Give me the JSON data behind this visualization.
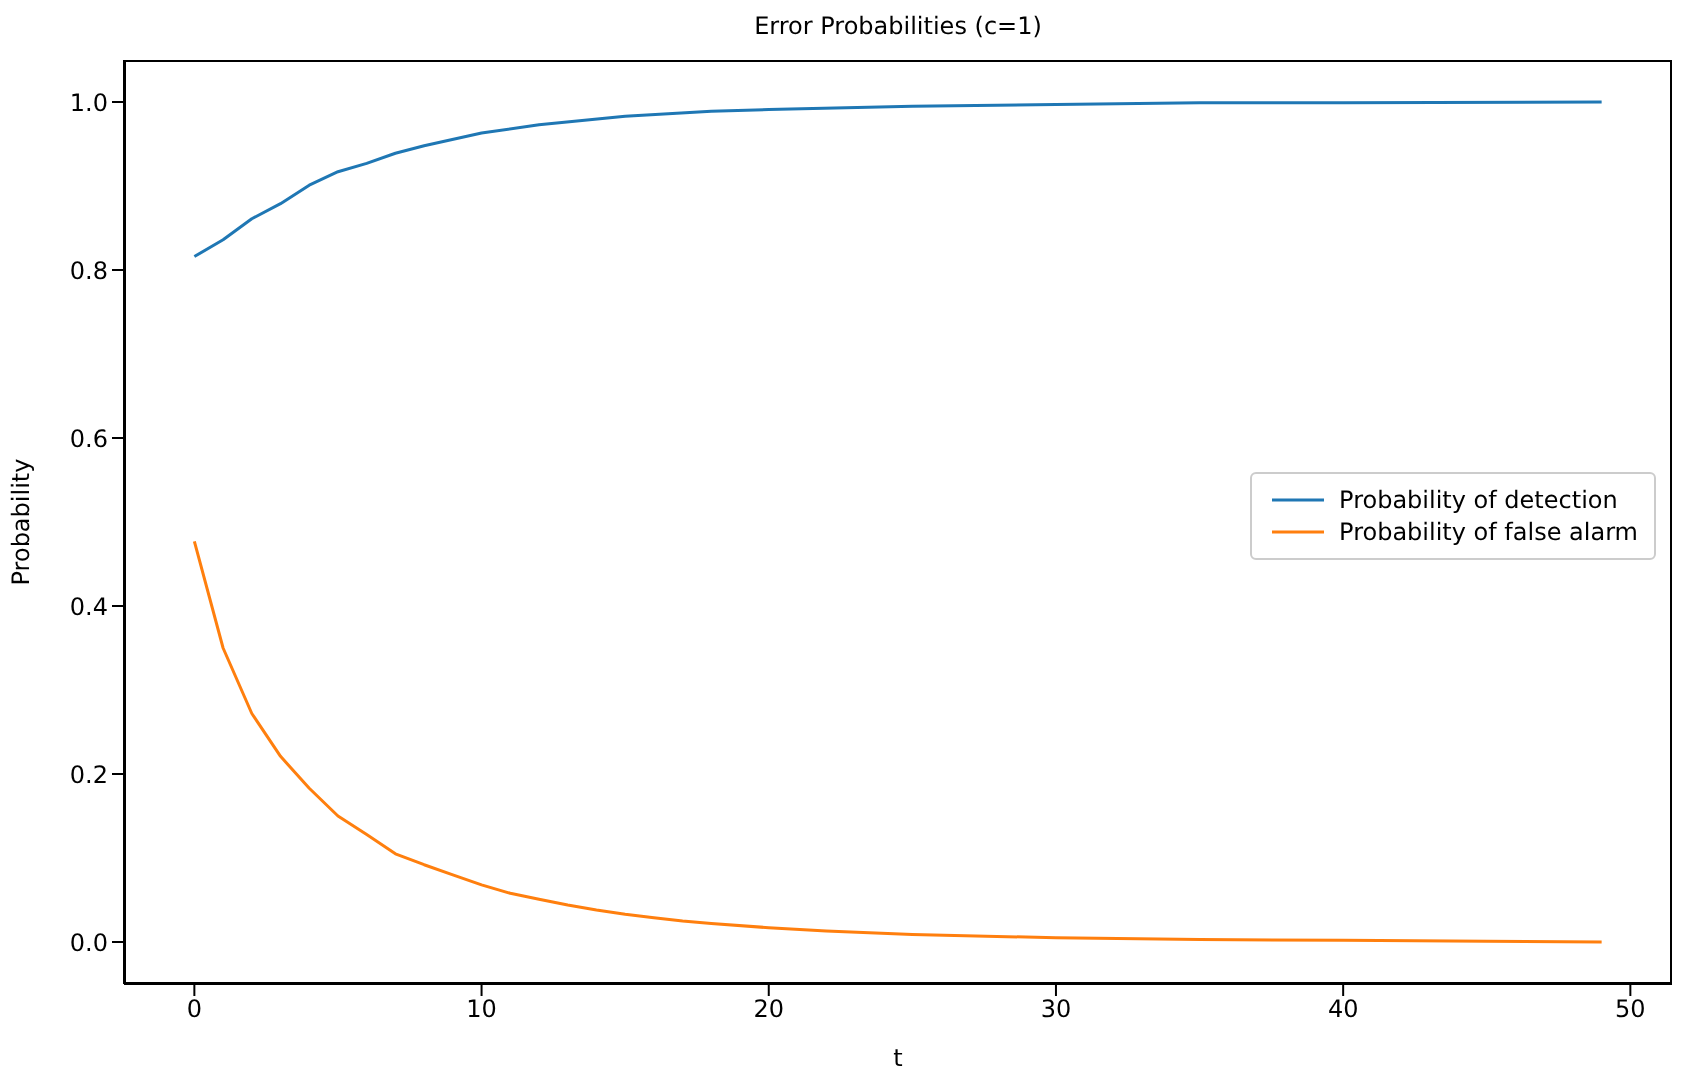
{
  "chart_data": {
    "type": "line",
    "title": "Error Probabilities (c=1)",
    "xlabel": "t",
    "ylabel": "Probability",
    "xlim": [
      -2.45,
      51.45
    ],
    "xticks": [
      0,
      10,
      20,
      30,
      40,
      50
    ],
    "ylim": [
      -0.05,
      1.05
    ],
    "yticks": [
      {
        "value": 0,
        "label": "0.0"
      },
      {
        "value": 0.2,
        "label": "0.2"
      },
      {
        "value": 0.4,
        "label": "0.4"
      },
      {
        "value": 0.6,
        "label": "0.6"
      },
      {
        "value": 0.8,
        "label": "0.8"
      },
      {
        "value": 1,
        "label": "1.0"
      }
    ],
    "grid": false,
    "legend": "right",
    "marker": "none",
    "line_style": "solid",
    "series": [
      {
        "name": "Probability of detection",
        "color": "#1f77b4",
        "x": [
          0,
          1,
          2,
          3,
          4,
          5,
          6,
          7,
          8,
          10,
          12,
          15,
          18,
          20,
          25,
          30,
          35,
          40,
          49
        ],
        "values": [
          0.816,
          0.836,
          0.861,
          0.879,
          0.901,
          0.917,
          0.927,
          0.939,
          0.948,
          0.963,
          0.973,
          0.983,
          0.989,
          0.991,
          0.995,
          0.997,
          0.999,
          0.999,
          1.0
        ]
      },
      {
        "name": "Probability of false alarm",
        "color": "#ff7f0e",
        "x": [
          0,
          1,
          2,
          3,
          4,
          5,
          6,
          7,
          8,
          9,
          10,
          11,
          12,
          13,
          14,
          15,
          16,
          17,
          18,
          20,
          22,
          25,
          30,
          35,
          40,
          45,
          49
        ],
        "values": [
          0.477,
          0.35,
          0.272,
          0.221,
          0.183,
          0.15,
          0.128,
          0.105,
          0.092,
          0.08,
          0.068,
          0.058,
          0.051,
          0.044,
          0.038,
          0.033,
          0.029,
          0.025,
          0.022,
          0.017,
          0.013,
          0.009,
          0.005,
          0.003,
          0.002,
          0.001,
          0.0
        ]
      }
    ]
  }
}
